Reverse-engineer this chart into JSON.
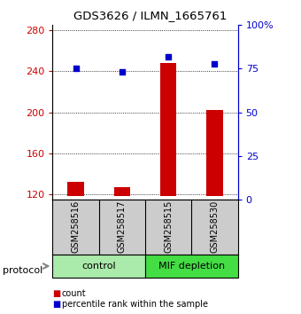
{
  "title": "GDS3626 / ILMN_1665761",
  "samples": [
    "GSM258516",
    "GSM258517",
    "GSM258515",
    "GSM258530"
  ],
  "bar_values": [
    132,
    127,
    248,
    202
  ],
  "dot_values": [
    75,
    73,
    82,
    78
  ],
  "bar_color": "#cc0000",
  "dot_color": "#0000cc",
  "ylim_left": [
    115,
    285
  ],
  "ylim_right": [
    0,
    100
  ],
  "yticks_left": [
    120,
    160,
    200,
    240,
    280
  ],
  "yticks_right": [
    0,
    25,
    50,
    75,
    100
  ],
  "ytick_labels_right": [
    "0",
    "25",
    "50",
    "75",
    "100%"
  ],
  "groups": [
    {
      "label": "control",
      "samples": [
        0,
        1
      ],
      "color": "#aaeaaa"
    },
    {
      "label": "MIF depletion",
      "samples": [
        2,
        3
      ],
      "color": "#44dd44"
    }
  ],
  "protocol_label": "protocol",
  "legend_count_label": "count",
  "legend_pct_label": "percentile rank within the sample",
  "bg_color": "#ffffff",
  "tick_label_color_left": "#cc0000",
  "tick_label_color_right": "#0000cc",
  "bar_bottom": 118,
  "bar_width": 0.35
}
